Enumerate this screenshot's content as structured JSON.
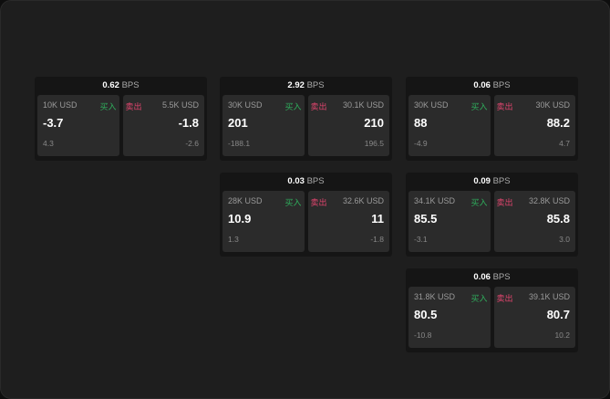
{
  "unit": "BPS",
  "buy_label": "买入",
  "sell_label": "卖出",
  "colors": {
    "buy": "#2fae5c",
    "sell": "#e0456e"
  },
  "widgets": [
    {
      "spread": "0.62",
      "bid_qty": "10K USD",
      "bid": "-3.7",
      "bid_chg": "4.3",
      "ask_qty": "5.5K USD",
      "ask": "-1.8",
      "ask_chg": "-2.6"
    },
    {
      "spread": "2.92",
      "bid_qty": "30K USD",
      "bid": "201",
      "bid_chg": "-188.1",
      "ask_qty": "30.1K USD",
      "ask": "210",
      "ask_chg": "196.5"
    },
    {
      "spread": "0.06",
      "bid_qty": "30K USD",
      "bid": "88",
      "bid_chg": "-4.9",
      "ask_qty": "30K USD",
      "ask": "88.2",
      "ask_chg": "4.7"
    },
    {
      "spread": "0.03",
      "bid_qty": "28K USD",
      "bid": "10.9",
      "bid_chg": "1.3",
      "ask_qty": "32.6K USD",
      "ask": "11",
      "ask_chg": "-1.8"
    },
    {
      "spread": "0.09",
      "bid_qty": "34.1K USD",
      "bid": "85.5",
      "bid_chg": "-3.1",
      "ask_qty": "32.8K USD",
      "ask": "85.8",
      "ask_chg": "3.0"
    },
    {
      "spread": "0.06",
      "bid_qty": "31.8K USD",
      "bid": "80.5",
      "bid_chg": "-10.8",
      "ask_qty": "39.1K USD",
      "ask": "80.7",
      "ask_chg": "10.2"
    }
  ]
}
